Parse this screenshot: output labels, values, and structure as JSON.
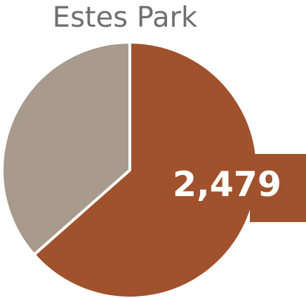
{
  "chart_data": {
    "type": "pie",
    "title": "Estes Park",
    "slices": [
      {
        "value": 0.635,
        "color": "#A0522D"
      },
      {
        "value": 0.365,
        "color": "#A89A8C"
      }
    ],
    "data_labels": [
      "2,479"
    ]
  }
}
